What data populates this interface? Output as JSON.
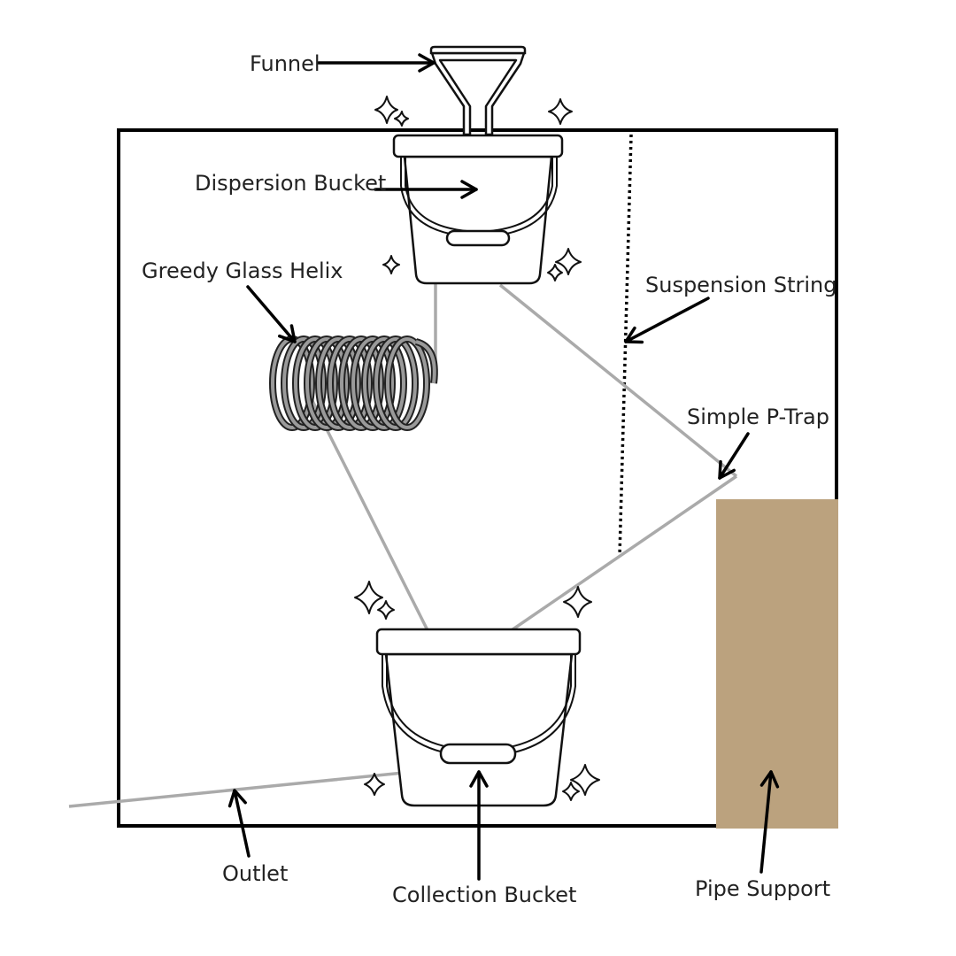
{
  "labels": {
    "funnel": "Funnel",
    "dispersion_bucket": "Dispersion Bucket",
    "greedy_glass_helix": "Greedy Glass Helix",
    "suspension_string": "Suspension String",
    "simple_p_trap": "Simple P-Trap",
    "outlet": "Outlet",
    "collection_bucket": "Collection Bucket",
    "pipe_support": "Pipe Support"
  },
  "colors": {
    "frame": "#000000",
    "pipe": "#aaaaaa",
    "pipe_support": "#bba27e",
    "helix": "#9a9a9a"
  }
}
